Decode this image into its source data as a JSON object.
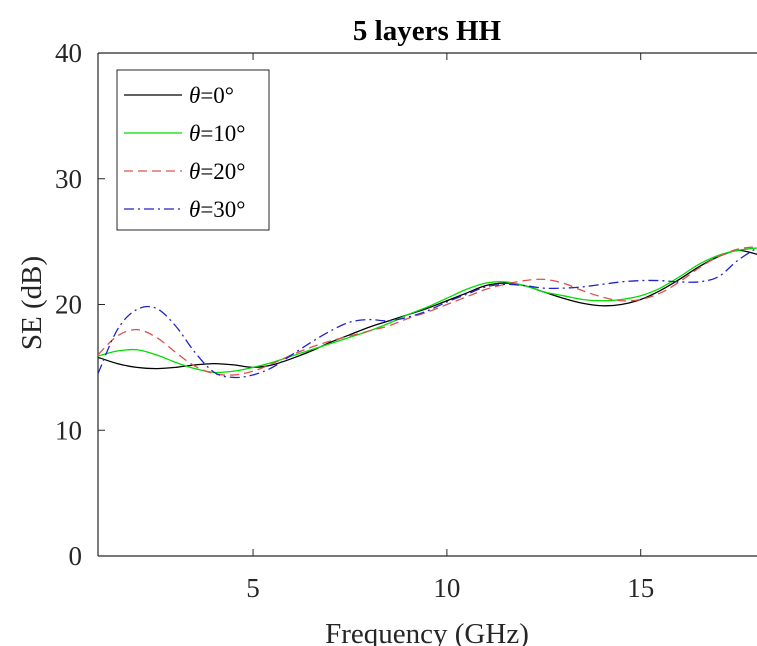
{
  "chart_data": {
    "type": "line",
    "title": "5 layers HH",
    "xlabel": "Frequency (GHz)",
    "ylabel": "SE (dB)",
    "xlim": [
      1,
      18
    ],
    "ylim": [
      0,
      40
    ],
    "xticks": [
      5,
      10,
      15
    ],
    "yticks": [
      0,
      10,
      20,
      30,
      40
    ],
    "grid": false,
    "legend_position": "top-left",
    "series": [
      {
        "name": "θ=0°",
        "color": "#000000",
        "dash": "solid",
        "x": [
          1,
          1.5,
          2,
          2.5,
          3,
          3.5,
          4,
          4.5,
          5,
          5.5,
          6,
          6.5,
          7,
          7.5,
          8,
          8.5,
          9,
          9.5,
          10,
          10.5,
          11,
          11.5,
          12,
          12.5,
          13,
          13.5,
          14,
          14.5,
          15,
          15.5,
          16,
          16.5,
          17,
          17.5,
          18
        ],
        "y": [
          15.8,
          15.3,
          15.0,
          14.9,
          15.0,
          15.2,
          15.3,
          15.2,
          15.0,
          15.2,
          15.7,
          16.3,
          17.0,
          17.6,
          18.2,
          18.7,
          19.2,
          19.7,
          20.3,
          20.9,
          21.5,
          21.7,
          21.5,
          21.0,
          20.5,
          20.1,
          19.9,
          20.0,
          20.4,
          21.1,
          22.0,
          23.0,
          23.8,
          24.3,
          24.0
        ]
      },
      {
        "name": "θ=10°",
        "color": "#00dd00",
        "dash": "solid",
        "x": [
          1,
          1.5,
          2,
          2.5,
          3,
          3.5,
          4,
          4.5,
          5,
          5.5,
          6,
          6.5,
          7,
          7.5,
          8,
          8.5,
          9,
          9.5,
          10,
          10.5,
          11,
          11.5,
          12,
          12.5,
          13,
          13.5,
          14,
          14.5,
          15,
          15.5,
          16,
          16.5,
          17,
          17.5,
          18
        ],
        "y": [
          15.9,
          16.3,
          16.4,
          16.0,
          15.4,
          14.9,
          14.6,
          14.7,
          15.0,
          15.4,
          15.9,
          16.4,
          16.9,
          17.4,
          17.9,
          18.5,
          19.2,
          19.8,
          20.5,
          21.2,
          21.7,
          21.8,
          21.5,
          21.0,
          20.7,
          20.4,
          20.3,
          20.4,
          20.7,
          21.3,
          22.2,
          23.2,
          23.9,
          24.3,
          24.5
        ]
      },
      {
        "name": "θ=20°",
        "color": "#d9534f",
        "dash": "dashed",
        "x": [
          1,
          1.5,
          2,
          2.5,
          3,
          3.5,
          4,
          4.5,
          5,
          5.5,
          6,
          6.5,
          7,
          7.5,
          8,
          8.5,
          9,
          9.5,
          10,
          10.5,
          11,
          11.5,
          12,
          12.5,
          13,
          13.5,
          14,
          14.5,
          15,
          15.5,
          16,
          16.5,
          17,
          17.5,
          18
        ],
        "y": [
          16.0,
          17.5,
          18.0,
          17.4,
          16.2,
          15.1,
          14.5,
          14.4,
          14.7,
          15.3,
          16.0,
          16.6,
          17.1,
          17.5,
          17.9,
          18.3,
          18.9,
          19.4,
          20.0,
          20.6,
          21.2,
          21.6,
          21.9,
          22.0,
          21.7,
          21.1,
          20.6,
          20.3,
          20.4,
          20.9,
          21.8,
          22.9,
          23.8,
          24.4,
          24.6
        ]
      },
      {
        "name": "θ=30°",
        "color": "#2222cc",
        "dash": "dashdot",
        "x": [
          1,
          1.5,
          2,
          2.5,
          3,
          3.5,
          4,
          4.5,
          5,
          5.5,
          6,
          6.5,
          7,
          7.5,
          8,
          8.5,
          9,
          9.5,
          10,
          10.5,
          11,
          11.5,
          12,
          12.5,
          13,
          13.5,
          14,
          14.5,
          15,
          15.5,
          16,
          16.5,
          17,
          17.5,
          18
        ],
        "y": [
          14.5,
          18.0,
          19.6,
          19.7,
          18.3,
          16.2,
          14.6,
          14.2,
          14.4,
          15.0,
          16.0,
          17.0,
          17.9,
          18.6,
          18.8,
          18.7,
          19.0,
          19.5,
          20.2,
          20.8,
          21.4,
          21.6,
          21.5,
          21.3,
          21.3,
          21.4,
          21.6,
          21.8,
          21.9,
          21.9,
          21.8,
          21.8,
          22.2,
          23.5,
          24.5
        ]
      }
    ]
  }
}
